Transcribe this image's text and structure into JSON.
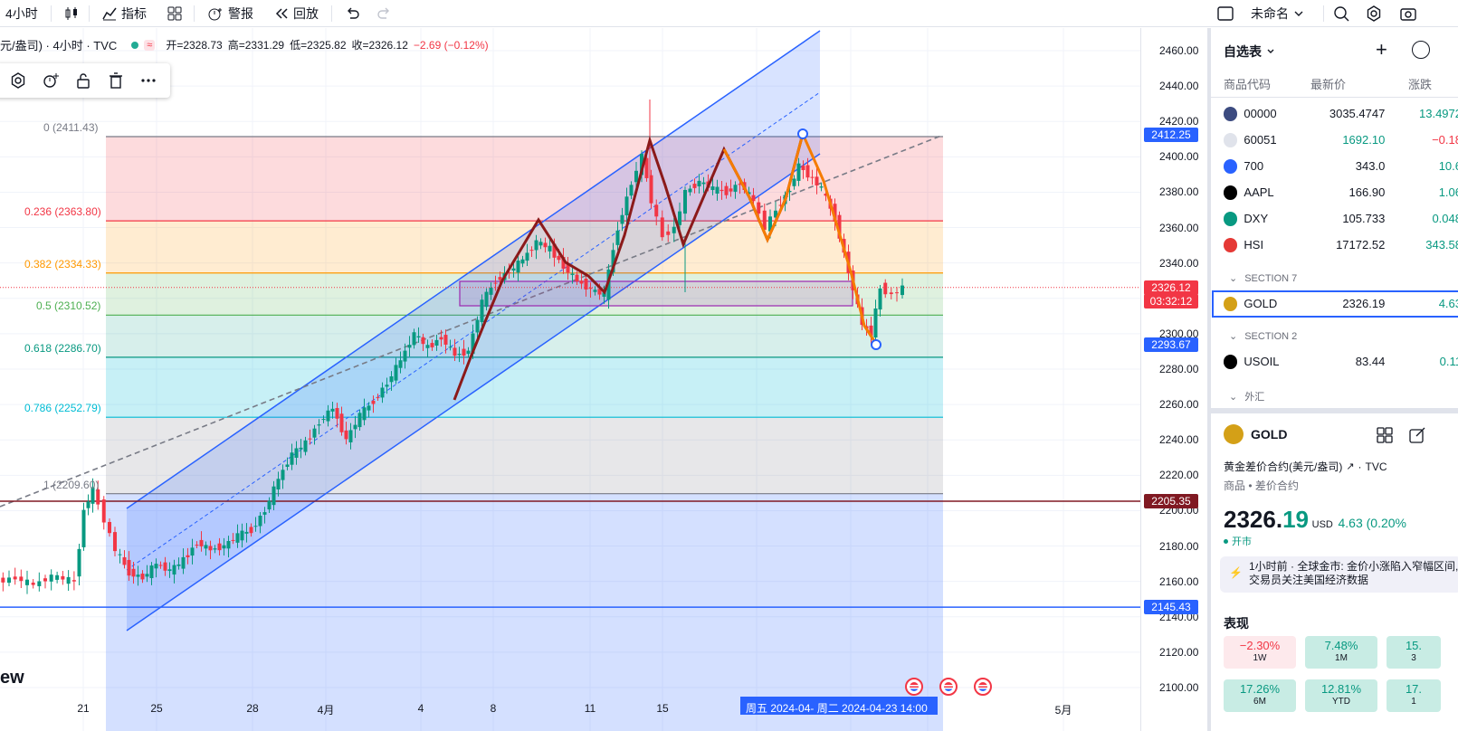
{
  "toolbar": {
    "interval": "4小时",
    "indicators_label": "指标",
    "alerts_label": "警报",
    "replay_label": "回放",
    "layout_name": "未命名"
  },
  "legend": {
    "title": "元/盎司) · 4小时 · TVC",
    "open": "开=2328.73",
    "high": "高=2331.29",
    "low": "低=2325.82",
    "close": "收=2326.12",
    "change": "−2.69 (−0.12%)"
  },
  "fib_levels": [
    {
      "label": "0 (2411.43)",
      "price": 2411.43,
      "color": "#787b86"
    },
    {
      "label": "0.236 (2363.80)",
      "price": 2363.8,
      "color": "#f23645"
    },
    {
      "label": "0.382 (2334.33)",
      "price": 2334.33,
      "color": "#ff9800"
    },
    {
      "label": "0.5 (2310.52)",
      "price": 2310.52,
      "color": "#4caf50"
    },
    {
      "label": "0.618 (2286.70)",
      "price": 2286.7,
      "color": "#089981"
    },
    {
      "label": "0.786 (2252.79)",
      "price": 2252.79,
      "color": "#00bcd4"
    },
    {
      "label": "1 (2209.60)",
      "price": 2209.6,
      "color": "#787b86"
    }
  ],
  "price_ticks": [
    "2460.00",
    "2440.00",
    "2420.00",
    "2400.00",
    "2380.00",
    "2360.00",
    "2340.00",
    "2320.00",
    "2300.00",
    "2280.00",
    "2260.00",
    "2240.00",
    "2220.00",
    "2200.00",
    "2180.00",
    "2160.00",
    "2140.00",
    "2120.00",
    "2100.00"
  ],
  "price_labels": [
    {
      "text": "2412.25",
      "price": 2412.25,
      "color": "#2962ff"
    },
    {
      "text": "2326.12",
      "price": 2326.12,
      "color": "#f23645"
    },
    {
      "text": "03:32:12",
      "price": 2320.0,
      "color": "#f23645"
    },
    {
      "text": "2293.67",
      "price": 2293.67,
      "color": "#2962ff"
    },
    {
      "text": "2205.35",
      "price": 2205.35,
      "color": "#801922"
    },
    {
      "text": "2145.43",
      "price": 2145.43,
      "color": "#2962ff"
    }
  ],
  "x_labels": [
    "21",
    "25",
    "28",
    "4月",
    "4",
    "8",
    "11",
    "15",
    "5月"
  ],
  "scale_label": "周五 2024-04-  周二 2024-04-23   14:00",
  "watermark": "ew",
  "watchlist": {
    "title": "自选表",
    "col_symbol": "商品代码",
    "col_last": "最新价",
    "col_change": "涨跌",
    "rows": [
      {
        "sym": "00000",
        "last": "3035.4747",
        "chg": "13.4972",
        "color": "#089981",
        "icon": "#3c4b80"
      },
      {
        "sym": "60051",
        "last": "1692.10",
        "chg": "−0.18",
        "color": "#f23645",
        "icon": "#e0e3eb"
      },
      {
        "sym": "700",
        "last": "343.0",
        "chg": "10.6",
        "color": "#089981",
        "icon": "#2962ff"
      },
      {
        "sym": "AAPL",
        "last": "166.90",
        "chg": "1.06",
        "color": "#089981",
        "icon": "#000000"
      },
      {
        "sym": "DXY",
        "last": "105.733",
        "chg": "0.048",
        "color": "#089981",
        "icon": "#089981"
      },
      {
        "sym": "HSI",
        "last": "17172.52",
        "chg": "343.58",
        "color": "#089981",
        "icon": "#e53935"
      },
      {
        "sym": "GOLD",
        "last": "2326.19",
        "chg": "4.63",
        "color": "#089981",
        "icon": "#d4a017"
      },
      {
        "sym": "USOIL",
        "last": "83.44",
        "chg": "0.11",
        "color": "#089981",
        "icon": "#000000"
      }
    ],
    "sections": [
      "SECTION 7",
      "SECTION 2",
      "外汇"
    ]
  },
  "detail": {
    "symbol": "GOLD",
    "name": "黄金差价合约(美元/盎司)",
    "source": "TVC",
    "category": "商品 • 差价合约",
    "price_main": "2326.",
    "price_dec": "19",
    "currency": "USD",
    "change": "4.63 (0.20%",
    "status": "开市",
    "news_time": "1小时前",
    "news_text": "全球金市: 金价小涨陷入窄幅区间, 交易员关注美国经济数据",
    "perf_title": "表现",
    "perf": [
      {
        "val": "−2.30%",
        "label": "1W",
        "neg": true
      },
      {
        "val": "7.48%",
        "label": "1M",
        "neg": false
      },
      {
        "val": "15.",
        "label": "3",
        "neg": false
      },
      {
        "val": "17.26%",
        "label": "6M",
        "neg": false
      },
      {
        "val": "12.81%",
        "label": "YTD",
        "neg": false
      },
      {
        "val": "17.",
        "label": "1",
        "neg": false
      }
    ]
  }
}
